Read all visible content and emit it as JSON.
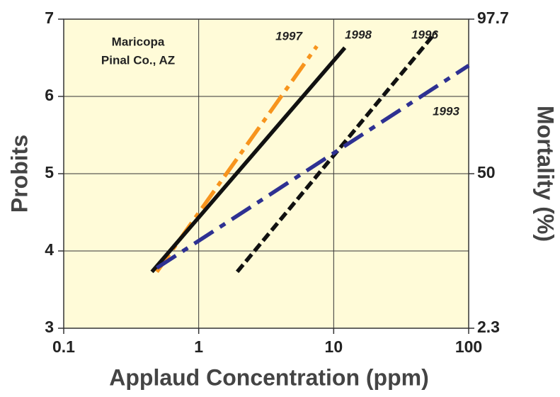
{
  "chart_data": {
    "type": "line",
    "xlabel": "Applaud Concentration (ppm)",
    "ylabel": "Probits",
    "y2label": "Mortality (%)",
    "annotations": [
      "Maricopa",
      "Pinal Co., AZ"
    ],
    "xscale": "log",
    "xlim": [
      0.1,
      100
    ],
    "xticks": [
      0.1,
      1,
      10,
      100
    ],
    "ylim": [
      3,
      7
    ],
    "yticks": [
      3,
      4,
      5,
      6,
      7
    ],
    "y2lim": [
      3,
      7
    ],
    "y2ticks": [
      {
        "value": 3,
        "label": "2.3"
      },
      {
        "value": 5,
        "label": "50"
      },
      {
        "value": 7,
        "label": "97.7"
      }
    ],
    "grid": true,
    "background": "#fffbd8",
    "series": [
      {
        "name": "1997",
        "color": "#f7941d",
        "dash": "30 9 7 9",
        "x": [
          0.49,
          7.5
        ],
        "values": [
          3.73,
          6.65
        ]
      },
      {
        "name": "1998",
        "color": "#111111",
        "dash": "none",
        "x": [
          0.45,
          12.1
        ],
        "values": [
          3.73,
          6.63
        ]
      },
      {
        "name": "1996",
        "color": "#111111",
        "dash": "13 6",
        "x": [
          1.93,
          57
        ],
        "values": [
          3.73,
          6.83
        ]
      },
      {
        "name": "1993",
        "color": "#2e3192",
        "dash": "32 11 9 11",
        "x": [
          0.49,
          100
        ],
        "values": [
          3.78,
          6.4
        ]
      }
    ]
  }
}
